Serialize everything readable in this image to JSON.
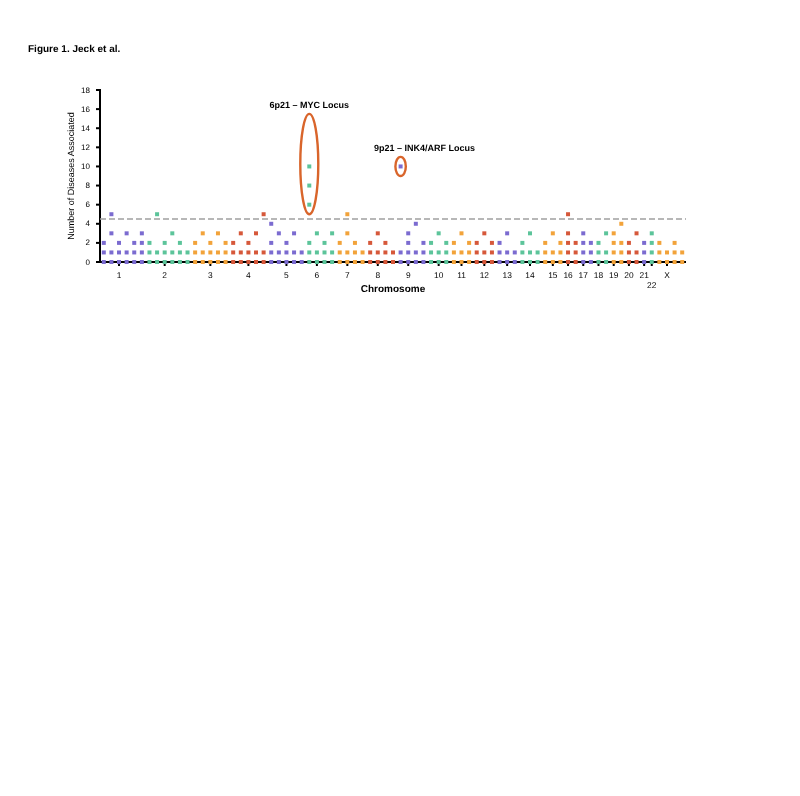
{
  "chart_data": {
    "type": "scatter",
    "title": "Figure 1. Jeck et al.",
    "xlabel": "Chromosome",
    "ylabel": "Number of Diseases Associated",
    "marker": "square",
    "ylim": [
      0,
      18
    ],
    "yticks": [
      0,
      2,
      4,
      6,
      8,
      10,
      12,
      14,
      16,
      18
    ],
    "categories": [
      null,
      null,
      "1",
      null,
      null,
      null,
      null,
      null,
      "2",
      null,
      null,
      null,
      null,
      null,
      "3",
      null,
      null,
      null,
      null,
      "4",
      null,
      null,
      null,
      null,
      "5",
      null,
      null,
      null,
      "6",
      null,
      null,
      null,
      "7",
      null,
      null,
      null,
      "8",
      null,
      null,
      null,
      "9",
      null,
      null,
      null,
      "10",
      null,
      null,
      "11",
      null,
      null,
      "12",
      null,
      null,
      "13",
      null,
      null,
      "14",
      null,
      null,
      "15",
      null,
      "16",
      null,
      "17",
      null,
      "18",
      null,
      "19",
      null,
      "20",
      null,
      "21",
      "22",
      null,
      "X",
      null,
      null
    ],
    "ref_lines": [
      {
        "axis": "y",
        "value": 4.5,
        "color": "#a0a0a0",
        "line_style": "dashed"
      }
    ],
    "annotations": [
      "6p21 – MYC Locus",
      "9p21 – INK4/ARF Locus"
    ],
    "series": [
      {
        "values": [
          0,
          0,
          0,
          0,
          0,
          0,
          0,
          0,
          0,
          0,
          0,
          0,
          0,
          0,
          0,
          0,
          0,
          0,
          0,
          0,
          0,
          0,
          0,
          0,
          0,
          0,
          0,
          0,
          0,
          0,
          0,
          0,
          0,
          0,
          0,
          0,
          0,
          0,
          0,
          0,
          0,
          0,
          0,
          0,
          0,
          0,
          0,
          0,
          0,
          0,
          0,
          0,
          0,
          0,
          0,
          0,
          0,
          0,
          0,
          0,
          0,
          0,
          0,
          0,
          0,
          0,
          0,
          0,
          0,
          0,
          0,
          0,
          0,
          0,
          0,
          0,
          0
        ],
        "colors": [
          "#7b6bd0",
          "#7b6bd0",
          "#7b6bd0",
          "#7b6bd0",
          "#7b6bd0",
          "#7b6bd0",
          "#5cc49a",
          "#5cc49a",
          "#5cc49a",
          "#5cc49a",
          "#5cc49a",
          "#5cc49a",
          "#f2a33a",
          "#f2a33a",
          "#f2a33a",
          "#f2a33a",
          "#f2a33a",
          "#d6583a",
          "#d6583a",
          "#d6583a",
          "#d6583a",
          "#d6583a",
          "#7b6bd0",
          "#7b6bd0",
          "#7b6bd0",
          "#7b6bd0",
          "#7b6bd0",
          "#5cc49a",
          "#5cc49a",
          "#5cc49a",
          "#5cc49a",
          "#f2a33a",
          "#f2a33a",
          "#f2a33a",
          "#f2a33a",
          "#d6583a",
          "#d6583a",
          "#d6583a",
          "#d6583a",
          "#7b6bd0",
          "#7b6bd0",
          "#7b6bd0",
          "#7b6bd0",
          "#5cc49a",
          "#5cc49a",
          "#5cc49a",
          "#f2a33a",
          "#f2a33a",
          "#f2a33a",
          "#d6583a",
          "#d6583a",
          "#d6583a",
          "#7b6bd0",
          "#7b6bd0",
          "#7b6bd0",
          "#5cc49a",
          "#5cc49a",
          "#5cc49a",
          "#f2a33a",
          "#f2a33a",
          "#f2a33a",
          "#d6583a",
          "#d6583a",
          "#7b6bd0",
          "#7b6bd0",
          "#5cc49a",
          "#5cc49a",
          "#f2a33a",
          "#f2a33a",
          "#d6583a",
          "#d6583a",
          "#7b6bd0",
          "#5cc49a",
          "#f2a33a",
          "#f2a33a",
          "#f2a33a",
          "#f2a33a"
        ]
      },
      {
        "values": [
          1,
          1,
          1,
          1,
          1,
          1,
          1,
          1,
          1,
          1,
          1,
          1,
          1,
          1,
          1,
          1,
          1,
          1,
          1,
          1,
          1,
          1,
          1,
          1,
          1,
          1,
          1,
          1,
          1,
          1,
          1,
          1,
          1,
          1,
          1,
          1,
          1,
          1,
          1,
          1,
          1,
          1,
          1,
          1,
          1,
          1,
          1,
          1,
          1,
          1,
          1,
          1,
          1,
          1,
          1,
          1,
          1,
          1,
          1,
          1,
          1,
          1,
          1,
          1,
          1,
          1,
          1,
          1,
          1,
          1,
          1,
          1,
          1,
          1,
          1,
          1,
          1
        ],
        "colors": [
          "#7b6bd0",
          "#7b6bd0",
          "#7b6bd0",
          "#7b6bd0",
          "#7b6bd0",
          "#7b6bd0",
          "#5cc49a",
          "#5cc49a",
          "#5cc49a",
          "#5cc49a",
          "#5cc49a",
          "#5cc49a",
          "#f2a33a",
          "#f2a33a",
          "#f2a33a",
          "#f2a33a",
          "#f2a33a",
          "#d6583a",
          "#d6583a",
          "#d6583a",
          "#d6583a",
          "#d6583a",
          "#7b6bd0",
          "#7b6bd0",
          "#7b6bd0",
          "#7b6bd0",
          "#7b6bd0",
          "#5cc49a",
          "#5cc49a",
          "#5cc49a",
          "#5cc49a",
          "#f2a33a",
          "#f2a33a",
          "#f2a33a",
          "#f2a33a",
          "#d6583a",
          "#d6583a",
          "#d6583a",
          "#d6583a",
          "#7b6bd0",
          "#7b6bd0",
          "#7b6bd0",
          "#7b6bd0",
          "#5cc49a",
          "#5cc49a",
          "#5cc49a",
          "#f2a33a",
          "#f2a33a",
          "#f2a33a",
          "#d6583a",
          "#d6583a",
          "#d6583a",
          "#7b6bd0",
          "#7b6bd0",
          "#7b6bd0",
          "#5cc49a",
          "#5cc49a",
          "#5cc49a",
          "#f2a33a",
          "#f2a33a",
          "#f2a33a",
          "#d6583a",
          "#d6583a",
          "#7b6bd0",
          "#7b6bd0",
          "#5cc49a",
          "#5cc49a",
          "#f2a33a",
          "#f2a33a",
          "#d6583a",
          "#d6583a",
          "#7b6bd0",
          "#5cc49a",
          "#f2a33a",
          "#f2a33a",
          "#f2a33a",
          "#f2a33a"
        ]
      },
      {
        "values": [
          2,
          null,
          2,
          null,
          2,
          2,
          2,
          null,
          2,
          null,
          2,
          null,
          2,
          null,
          2,
          null,
          2,
          2,
          null,
          2,
          null,
          null,
          2,
          null,
          2,
          null,
          null,
          2,
          null,
          2,
          null,
          2,
          null,
          2,
          null,
          2,
          null,
          2,
          null,
          null,
          2,
          null,
          2,
          2,
          null,
          2,
          2,
          null,
          2,
          2,
          null,
          2,
          2,
          null,
          null,
          2,
          null,
          null,
          2,
          null,
          2,
          2,
          2,
          2,
          2,
          2,
          null,
          2,
          2,
          2,
          null,
          2,
          2,
          2,
          null,
          2,
          null
        ],
        "colors": [
          "#7b6bd0",
          "#7b6bd0",
          "#7b6bd0",
          "#7b6bd0",
          "#7b6bd0",
          "#7b6bd0",
          "#5cc49a",
          "#5cc49a",
          "#5cc49a",
          "#5cc49a",
          "#5cc49a",
          "#5cc49a",
          "#f2a33a",
          "#f2a33a",
          "#f2a33a",
          "#f2a33a",
          "#f2a33a",
          "#d6583a",
          "#d6583a",
          "#d6583a",
          "#d6583a",
          "#d6583a",
          "#7b6bd0",
          "#7b6bd0",
          "#7b6bd0",
          "#7b6bd0",
          "#7b6bd0",
          "#5cc49a",
          "#5cc49a",
          "#5cc49a",
          "#5cc49a",
          "#f2a33a",
          "#f2a33a",
          "#f2a33a",
          "#f2a33a",
          "#d6583a",
          "#d6583a",
          "#d6583a",
          "#d6583a",
          "#7b6bd0",
          "#7b6bd0",
          "#7b6bd0",
          "#7b6bd0",
          "#5cc49a",
          "#5cc49a",
          "#5cc49a",
          "#f2a33a",
          "#f2a33a",
          "#f2a33a",
          "#d6583a",
          "#d6583a",
          "#d6583a",
          "#7b6bd0",
          "#7b6bd0",
          "#7b6bd0",
          "#5cc49a",
          "#5cc49a",
          "#5cc49a",
          "#f2a33a",
          "#f2a33a",
          "#f2a33a",
          "#d6583a",
          "#d6583a",
          "#7b6bd0",
          "#7b6bd0",
          "#5cc49a",
          "#5cc49a",
          "#f2a33a",
          "#f2a33a",
          "#d6583a",
          "#d6583a",
          "#7b6bd0",
          "#5cc49a",
          "#f2a33a",
          "#f2a33a",
          "#f2a33a",
          "#f2a33a"
        ]
      },
      {
        "values": [
          null,
          3,
          null,
          3,
          null,
          3,
          null,
          null,
          null,
          3,
          null,
          null,
          null,
          3,
          null,
          3,
          null,
          null,
          3,
          null,
          3,
          null,
          null,
          3,
          null,
          3,
          null,
          null,
          3,
          null,
          3,
          null,
          3,
          null,
          null,
          null,
          3,
          null,
          null,
          null,
          3,
          null,
          null,
          null,
          3,
          null,
          null,
          3,
          null,
          null,
          3,
          null,
          null,
          3,
          null,
          null,
          3,
          null,
          null,
          3,
          null,
          3,
          null,
          3,
          null,
          null,
          3,
          3,
          null,
          null,
          3,
          null,
          3,
          null,
          null,
          null,
          null
        ],
        "colors": [
          "#7b6bd0",
          "#7b6bd0",
          "#7b6bd0",
          "#7b6bd0",
          "#7b6bd0",
          "#7b6bd0",
          "#5cc49a",
          "#5cc49a",
          "#5cc49a",
          "#5cc49a",
          "#5cc49a",
          "#5cc49a",
          "#f2a33a",
          "#f2a33a",
          "#f2a33a",
          "#f2a33a",
          "#f2a33a",
          "#d6583a",
          "#d6583a",
          "#d6583a",
          "#d6583a",
          "#d6583a",
          "#7b6bd0",
          "#7b6bd0",
          "#7b6bd0",
          "#7b6bd0",
          "#7b6bd0",
          "#5cc49a",
          "#5cc49a",
          "#5cc49a",
          "#5cc49a",
          "#f2a33a",
          "#f2a33a",
          "#f2a33a",
          "#f2a33a",
          "#d6583a",
          "#d6583a",
          "#d6583a",
          "#d6583a",
          "#7b6bd0",
          "#7b6bd0",
          "#7b6bd0",
          "#7b6bd0",
          "#5cc49a",
          "#5cc49a",
          "#5cc49a",
          "#f2a33a",
          "#f2a33a",
          "#f2a33a",
          "#d6583a",
          "#d6583a",
          "#d6583a",
          "#7b6bd0",
          "#7b6bd0",
          "#7b6bd0",
          "#5cc49a",
          "#5cc49a",
          "#5cc49a",
          "#f2a33a",
          "#f2a33a",
          "#f2a33a",
          "#d6583a",
          "#d6583a",
          "#7b6bd0",
          "#7b6bd0",
          "#5cc49a",
          "#5cc49a",
          "#f2a33a",
          "#f2a33a",
          "#d6583a",
          "#d6583a",
          "#7b6bd0",
          "#5cc49a",
          "#f2a33a",
          "#f2a33a",
          "#f2a33a",
          "#f2a33a"
        ]
      },
      {
        "values": [
          null,
          5,
          null,
          null,
          null,
          null,
          null,
          5,
          null,
          null,
          null,
          null,
          null,
          null,
          null,
          null,
          null,
          null,
          null,
          null,
          null,
          5,
          4,
          null,
          null,
          null,
          null,
          6,
          null,
          null,
          null,
          null,
          5,
          null,
          null,
          null,
          null,
          null,
          null,
          10,
          null,
          4,
          null,
          null,
          null,
          null,
          null,
          null,
          null,
          null,
          null,
          null,
          null,
          null,
          null,
          null,
          null,
          null,
          null,
          null,
          null,
          5,
          null,
          null,
          null,
          null,
          null,
          null,
          4,
          null,
          null,
          null,
          null,
          null,
          null,
          null,
          null
        ],
        "colors": [
          "#7b6bd0",
          "#7b6bd0",
          "#7b6bd0",
          "#7b6bd0",
          "#7b6bd0",
          "#7b6bd0",
          "#5cc49a",
          "#5cc49a",
          "#5cc49a",
          "#5cc49a",
          "#5cc49a",
          "#5cc49a",
          "#f2a33a",
          "#f2a33a",
          "#f2a33a",
          "#f2a33a",
          "#f2a33a",
          "#d6583a",
          "#d6583a",
          "#d6583a",
          "#d6583a",
          "#d6583a",
          "#7b6bd0",
          "#7b6bd0",
          "#7b6bd0",
          "#7b6bd0",
          "#7b6bd0",
          "#5cc49a",
          "#5cc49a",
          "#5cc49a",
          "#5cc49a",
          "#f2a33a",
          "#f2a33a",
          "#f2a33a",
          "#f2a33a",
          "#d6583a",
          "#d6583a",
          "#d6583a",
          "#d6583a",
          "#7b6bd0",
          "#7b6bd0",
          "#7b6bd0",
          "#7b6bd0",
          "#5cc49a",
          "#5cc49a",
          "#5cc49a",
          "#f2a33a",
          "#f2a33a",
          "#f2a33a",
          "#d6583a",
          "#d6583a",
          "#d6583a",
          "#7b6bd0",
          "#7b6bd0",
          "#7b6bd0",
          "#5cc49a",
          "#5cc49a",
          "#5cc49a",
          "#f2a33a",
          "#f2a33a",
          "#f2a33a",
          "#d6583a",
          "#d6583a",
          "#7b6bd0",
          "#7b6bd0",
          "#5cc49a",
          "#5cc49a",
          "#f2a33a",
          "#f2a33a",
          "#d6583a",
          "#d6583a",
          "#7b6bd0",
          "#5cc49a",
          "#f2a33a",
          "#f2a33a",
          "#f2a33a",
          "#f2a33a"
        ]
      },
      {
        "color": "#5cc49a",
        "values": [
          null,
          null,
          null,
          null,
          null,
          null,
          null,
          null,
          null,
          null,
          null,
          null,
          null,
          null,
          null,
          null,
          null,
          null,
          null,
          null,
          null,
          null,
          null,
          null,
          null,
          null,
          null,
          8,
          null,
          null,
          null,
          null,
          null,
          null,
          null,
          null,
          null,
          null,
          null,
          null,
          null,
          null,
          null,
          null,
          null,
          null,
          null,
          null,
          null,
          null,
          null,
          null,
          null,
          null,
          null,
          null,
          null,
          null,
          null,
          null,
          null,
          null,
          null,
          null,
          null,
          null,
          null,
          null,
          null,
          null,
          null,
          null,
          null,
          null,
          null,
          null,
          null
        ]
      },
      {
        "color": "#5cc49a",
        "values": [
          null,
          null,
          null,
          null,
          null,
          null,
          null,
          null,
          null,
          null,
          null,
          null,
          null,
          null,
          null,
          null,
          null,
          null,
          null,
          null,
          null,
          null,
          null,
          null,
          null,
          null,
          null,
          10,
          null,
          null,
          null,
          null,
          null,
          null,
          null,
          null,
          null,
          null,
          null,
          null,
          null,
          null,
          null,
          null,
          null,
          null,
          null,
          null,
          null,
          null,
          null,
          null,
          null,
          null,
          null,
          null,
          null,
          null,
          null,
          null,
          null,
          null,
          null,
          null,
          null,
          null,
          null,
          null,
          null,
          null,
          null,
          null,
          null,
          null,
          null,
          null,
          null
        ]
      }
    ]
  }
}
